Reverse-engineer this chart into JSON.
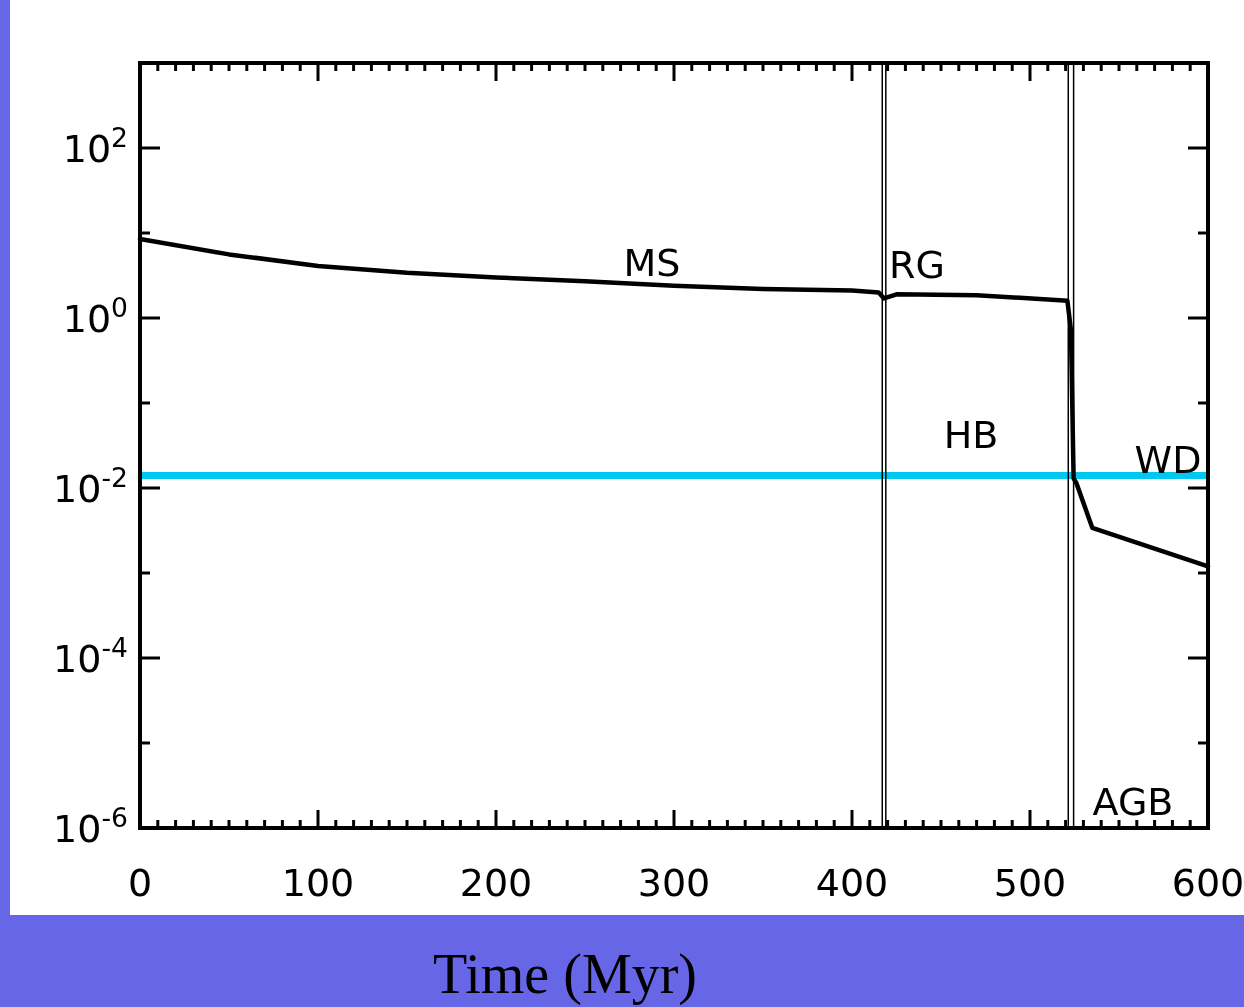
{
  "chart_data": {
    "type": "line",
    "xlabel": "Time (Myr)",
    "log": "y",
    "grid": false,
    "marker": "none",
    "line_style": "solid",
    "xlim": [
      0,
      600
    ],
    "ylim": [
      1e-06,
      1000
    ],
    "xticks": [
      0,
      {
        "value": 10,
        "label": null
      },
      {
        "value": 20,
        "label": null
      },
      {
        "value": 30,
        "label": null
      },
      {
        "value": 40,
        "label": null
      },
      {
        "value": 50,
        "label": null
      },
      {
        "value": 60,
        "label": null
      },
      {
        "value": 70,
        "label": null
      },
      {
        "value": 80,
        "label": null
      },
      {
        "value": 90,
        "label": null
      },
      100,
      {
        "value": 110,
        "label": null
      },
      {
        "value": 120,
        "label": null
      },
      {
        "value": 130,
        "label": null
      },
      {
        "value": 140,
        "label": null
      },
      {
        "value": 150,
        "label": null
      },
      {
        "value": 160,
        "label": null
      },
      {
        "value": 170,
        "label": null
      },
      {
        "value": 180,
        "label": null
      },
      {
        "value": 190,
        "label": null
      },
      200,
      {
        "value": 210,
        "label": null
      },
      {
        "value": 220,
        "label": null
      },
      {
        "value": 230,
        "label": null
      },
      {
        "value": 240,
        "label": null
      },
      {
        "value": 250,
        "label": null
      },
      {
        "value": 260,
        "label": null
      },
      {
        "value": 270,
        "label": null
      },
      {
        "value": 280,
        "label": null
      },
      {
        "value": 290,
        "label": null
      },
      300,
      {
        "value": 310,
        "label": null
      },
      {
        "value": 320,
        "label": null
      },
      {
        "value": 330,
        "label": null
      },
      {
        "value": 340,
        "label": null
      },
      {
        "value": 350,
        "label": null
      },
      {
        "value": 360,
        "label": null
      },
      {
        "value": 370,
        "label": null
      },
      {
        "value": 380,
        "label": null
      },
      {
        "value": 390,
        "label": null
      },
      400,
      {
        "value": 410,
        "label": null
      },
      {
        "value": 420,
        "label": null
      },
      {
        "value": 430,
        "label": null
      },
      {
        "value": 440,
        "label": null
      },
      {
        "value": 450,
        "label": null
      },
      {
        "value": 460,
        "label": null
      },
      {
        "value": 470,
        "label": null
      },
      {
        "value": 480,
        "label": null
      },
      {
        "value": 490,
        "label": null
      },
      500,
      {
        "value": 510,
        "label": null
      },
      {
        "value": 520,
        "label": null
      },
      {
        "value": 530,
        "label": null
      },
      {
        "value": 540,
        "label": null
      },
      {
        "value": 550,
        "label": null
      },
      {
        "value": 560,
        "label": null
      },
      {
        "value": 570,
        "label": null
      },
      {
        "value": 580,
        "label": null
      },
      {
        "value": 590,
        "label": null
      },
      600
    ],
    "yticks": [
      {
        "value": 1e-06,
        "label": "10$^{-6}$"
      },
      {
        "value": 1e-05,
        "label": null
      },
      {
        "value": 0.0001,
        "label": "10$^{-4}$"
      },
      {
        "value": 0.001,
        "label": null
      },
      {
        "value": 0.01,
        "label": "10$^{-2}$"
      },
      {
        "value": 0.1,
        "label": null
      },
      {
        "value": 1,
        "label": "10$^{0}$"
      },
      {
        "value": 10,
        "label": null
      },
      {
        "value": 100,
        "label": "10$^{2}$"
      }
    ],
    "series": [
      {
        "color": "#000000",
        "x": [
          0,
          50,
          100,
          150,
          200,
          250,
          300,
          350,
          400,
          415,
          418,
          425,
          470,
          521,
          523,
          524.5,
          526,
          535,
          600
        ],
        "values": [
          8.5,
          5.6,
          4.1,
          3.4,
          3.0,
          2.7,
          2.4,
          2.2,
          2.1,
          2.0,
          1.7,
          1.9,
          1.85,
          1.6,
          0.72,
          0.013,
          0.0115,
          0.0034,
          0.0012
        ]
      }
    ],
    "ref_lines": [
      {
        "axis": "y",
        "value": 0.014,
        "color": "#00c8f0"
      },
      {
        "axis": "x",
        "value": 417,
        "color": "#000000"
      },
      {
        "axis": "x",
        "value": 419,
        "color": "#000000"
      },
      {
        "axis": "x",
        "value": 521.5,
        "color": "#000000"
      },
      {
        "axis": "x",
        "value": 524.5,
        "color": "#000000"
      }
    ],
    "annotations": [
      "MS",
      "RG",
      "HB",
      "WD",
      "AGB"
    ]
  }
}
